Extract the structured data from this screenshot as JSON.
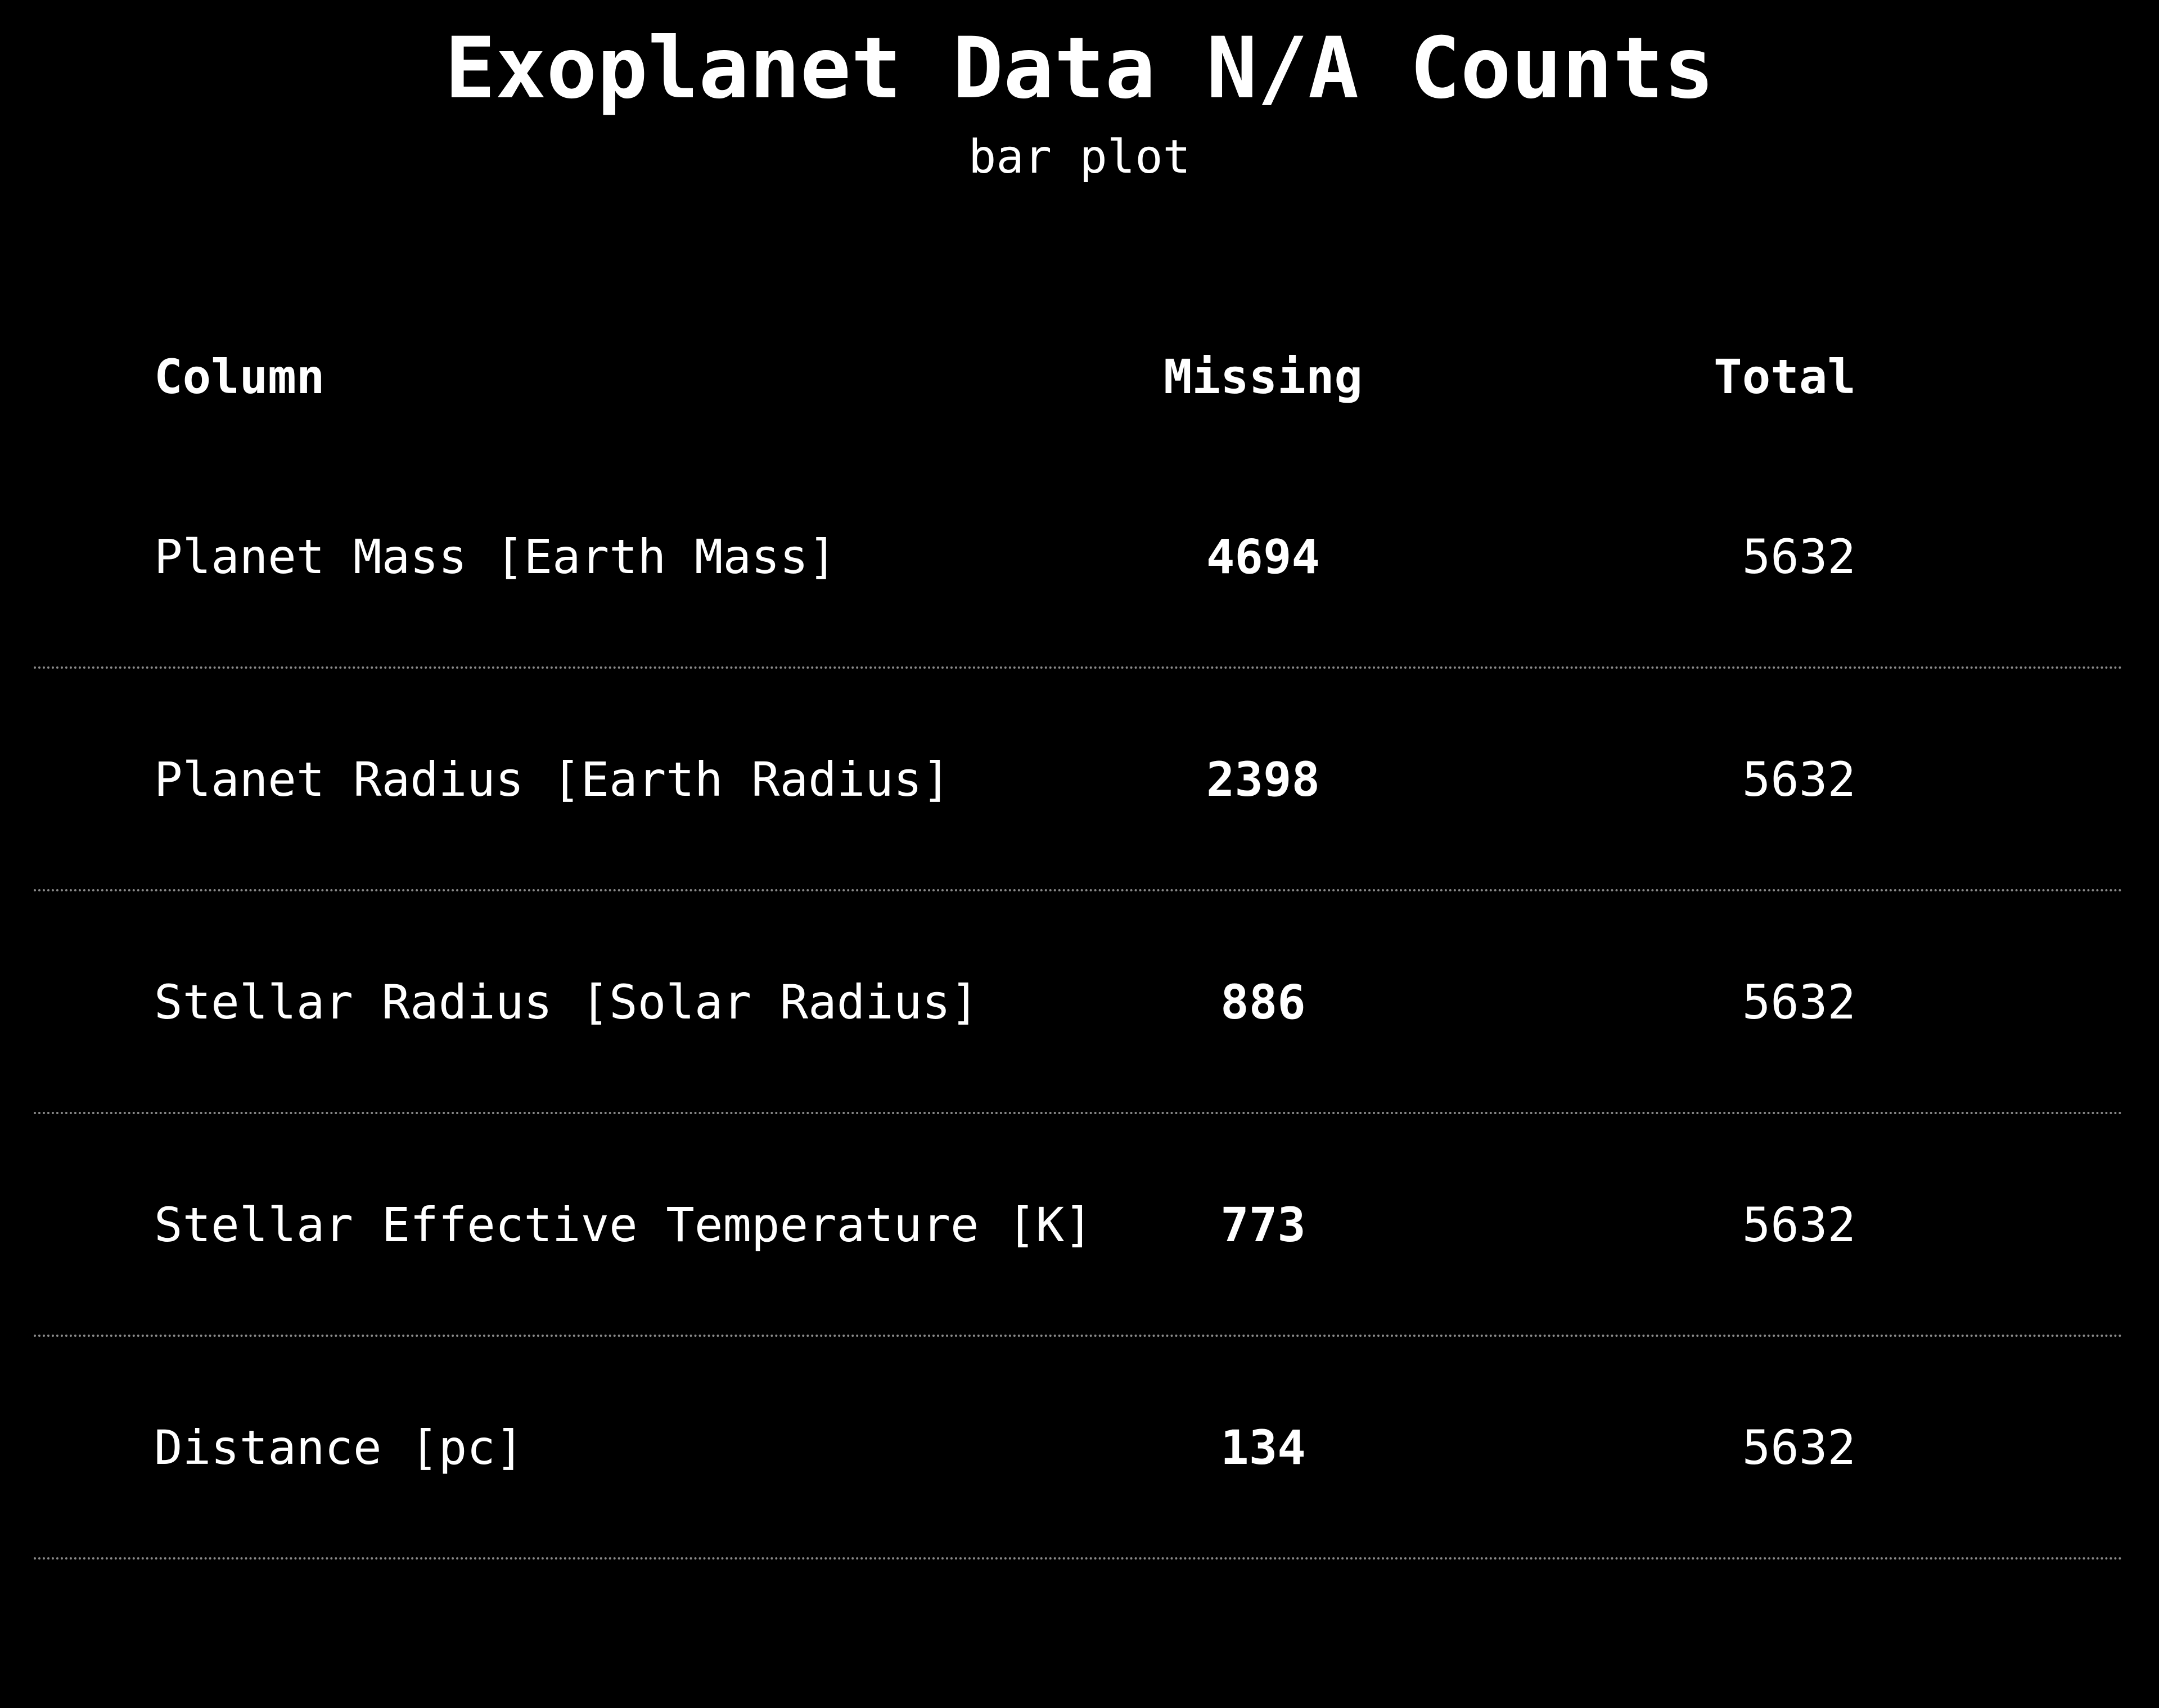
{
  "title": "Exoplanet Data N/A Counts",
  "subtitle": "bar plot",
  "columns": {
    "name": "Column",
    "missing": "Missing",
    "total": "Total"
  },
  "chart_data": {
    "type": "table",
    "title": "Exoplanet Data N/A Counts",
    "subtitle": "bar plot",
    "headers": [
      "Column",
      "Missing",
      "Total"
    ],
    "rows": [
      {
        "column": "Planet Mass [Earth Mass]",
        "missing": 4694,
        "total": 5632
      },
      {
        "column": "Planet Radius [Earth Radius]",
        "missing": 2398,
        "total": 5632
      },
      {
        "column": "Stellar Radius [Solar Radius]",
        "missing": 886,
        "total": 5632
      },
      {
        "column": "Stellar Effective Temperature [K]",
        "missing": 773,
        "total": 5632
      },
      {
        "column": "Distance [pc]",
        "missing": 134,
        "total": 5632
      }
    ]
  },
  "colors": {
    "background": "#000000",
    "text": "#ffffff",
    "rule": "#8a8a8a"
  }
}
